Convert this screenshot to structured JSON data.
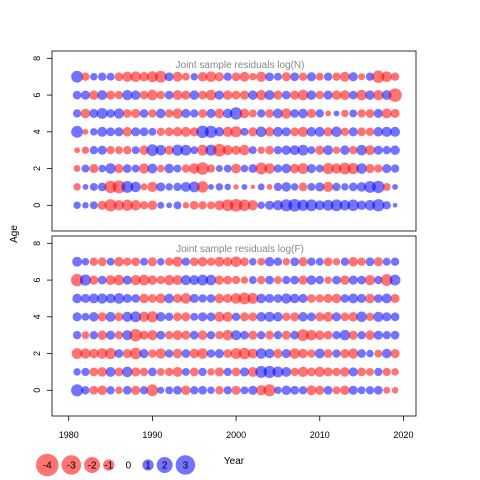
{
  "chart_data": {
    "type": "scatter",
    "subtype": "bubble",
    "ylabel": "Age",
    "legend_title": "Year",
    "legend_placement": "bottom-left",
    "colors": {
      "negative": "#FF0000",
      "positive": "#0000FF",
      "opacity": 0.55
    },
    "x_ticks": [
      1980,
      1990,
      2000,
      2010,
      2020
    ],
    "y_ticks": [
      0,
      2,
      4,
      6,
      8
    ],
    "xlim": [
      1978,
      2021.5
    ],
    "ylim": [
      -1.4,
      8.4
    ],
    "ages": [
      0,
      1,
      2,
      3,
      4,
      5,
      6,
      7
    ],
    "years": [
      1981,
      1982,
      1983,
      1984,
      1985,
      1986,
      1987,
      1988,
      1989,
      1990,
      1991,
      1992,
      1993,
      1994,
      1995,
      1996,
      1997,
      1998,
      1999,
      2000,
      2001,
      2002,
      2003,
      2004,
      2005,
      2006,
      2007,
      2008,
      2009,
      2010,
      2011,
      2012,
      2013,
      2014,
      2015,
      2016,
      2017,
      2018,
      2019
    ],
    "legend": [
      {
        "label": "-4",
        "value": -4
      },
      {
        "label": "-3",
        "value": -3
      },
      {
        "label": "-2",
        "value": -2
      },
      {
        "label": "-1",
        "value": -1
      },
      {
        "label": "0",
        "value": 0
      },
      {
        "label": "1",
        "value": 1
      },
      {
        "label": "2",
        "value": 2
      },
      {
        "label": "3",
        "value": 3
      }
    ],
    "panels": [
      {
        "title": "Joint sample residuals log(N)",
        "residuals": [
          [
            0.8,
            0.6,
            0.9,
            -1.2,
            -2.1,
            -1.5,
            -1.8,
            -1.6,
            -1.0,
            -1.3,
            0.7,
            0.5,
            0.9,
            -0.6,
            -1.1,
            -1.0,
            -0.9,
            -1.4,
            -2.0,
            -2.3,
            -1.9,
            -1.5,
            0.8,
            1.2,
            1.5,
            2.1,
            2.3,
            1.8,
            2.0,
            1.4,
            1.7,
            2.0,
            1.6,
            1.9,
            1.3,
            1.6,
            2.2,
            1.0,
            0.3
          ],
          [
            -0.8,
            0.5,
            0.9,
            1.1,
            -2.2,
            -2.4,
            2.0,
            1.6,
            -0.7,
            -1.5,
            1.2,
            0.8,
            1.0,
            1.4,
            1.7,
            -1.9,
            0.5,
            0.8,
            0.6,
            -0.4,
            0.5,
            -0.3,
            0.7,
            -0.5,
            1.0,
            1.3,
            0.8,
            -1.1,
            0.9,
            1.2,
            -1.5,
            1.0,
            0.8,
            1.1,
            1.3,
            2.0,
            2.2,
            -0.9,
            0.5
          ],
          [
            -0.7,
            0.9,
            -1.2,
            0.8,
            1.6,
            -1.2,
            1.1,
            0.9,
            -1.5,
            1.4,
            -0.8,
            1.3,
            0.9,
            -1.0,
            -1.6,
            -2.3,
            -1.0,
            0.7,
            0.9,
            -1.4,
            0.8,
            1.1,
            -2.0,
            -1.6,
            1.0,
            1.3,
            -1.3,
            -1.7,
            1.2,
            0.9,
            -1.8,
            -1.5,
            -2.0,
            -1.8,
            1.6,
            -1.2,
            -1.0,
            1.2,
            1.0
          ],
          [
            -0.5,
            -0.8,
            1.0,
            1.2,
            -1.0,
            -0.9,
            -1.0,
            0.9,
            -1.3,
            2.0,
            1.6,
            -1.2,
            1.8,
            1.7,
            0.9,
            -1.7,
            1.8,
            -2.3,
            -1.5,
            -1.2,
            -1.6,
            0.9,
            -0.8,
            -1.1,
            1.0,
            1.3,
            1.4,
            1.7,
            0.9,
            -1.2,
            1.4,
            -0.8,
            1.3,
            -1.0,
            1.6,
            -1.4,
            1.2,
            1.0,
            1.3
          ],
          [
            2.0,
            -0.5,
            0.8,
            1.4,
            1.1,
            1.2,
            -1.3,
            1.2,
            1.1,
            0.9,
            -1.0,
            -1.1,
            -1.3,
            -1.4,
            -1.2,
            2.2,
            2.1,
            1.3,
            -1.5,
            -1.8,
            0.9,
            -1.2,
            1.6,
            -1.3,
            1.4,
            1.2,
            -1.1,
            -1.5,
            1.3,
            1.4,
            -1.2,
            1.6,
            -1.0,
            1.2,
            -1.1,
            -1.0,
            1.3,
            1.5,
            1.4
          ],
          [
            1.0,
            -1.3,
            1.2,
            1.7,
            1.1,
            1.5,
            -1.1,
            -1.2,
            1.1,
            -1.0,
            1.3,
            -1.0,
            -1.5,
            1.2,
            1.0,
            -1.1,
            1.2,
            -1.3,
            1.3,
            2.2,
            -1.3,
            -0.9,
            1.0,
            -1.1,
            1.4,
            -1.5,
            1.1,
            1.3,
            -1.2,
            1.0,
            -0.5,
            0.5,
            -0.8,
            0.9,
            -1.0,
            -1.1,
            1.2,
            -1.4,
            -1.2
          ],
          [
            1.1,
            1.2,
            -1.3,
            1.4,
            -1.2,
            -1.0,
            1.5,
            1.3,
            -1.1,
            -1.6,
            -1.0,
            1.1,
            -1.4,
            -1.2,
            1.3,
            -1.1,
            -1.6,
            1.2,
            -1.3,
            -1.1,
            -1.2,
            1.3,
            -1.5,
            1.4,
            -1.2,
            1.1,
            -1.2,
            -1.6,
            1.3,
            -1.0,
            1.2,
            -1.3,
            -1.4,
            1.1,
            -1.6,
            1.3,
            -1.5,
            1.4,
            -2.6
          ],
          [
            2.0,
            -1.0,
            0.8,
            1.0,
            0.9,
            -1.1,
            -1.5,
            -1.6,
            -1.3,
            -1.7,
            -2.0,
            1.1,
            -1.4,
            -0.9,
            0.8,
            -1.3,
            -1.6,
            -1.2,
            1.0,
            -1.1,
            -1.4,
            -0.8,
            -1.5,
            1.1,
            0.9,
            -1.2,
            1.1,
            -1.0,
            1.2,
            -0.9,
            1.0,
            -1.0,
            -1.4,
            1.2,
            -0.7,
            1.0,
            -2.2,
            -1.6,
            -1.0
          ]
        ]
      },
      {
        "title": "Joint sample residuals log(F)",
        "residuals": [
          [
            2.1,
            1.0,
            -1.1,
            -1.3,
            1.0,
            -0.8,
            1.1,
            -1.2,
            1.0,
            -2.0,
            0.7,
            0.9,
            1.1,
            -1.3,
            1.0,
            1.1,
            0.8,
            -1.0,
            1.0,
            -1.2,
            0.9,
            1.2,
            -1.5,
            -2.1,
            0.8,
            1.3,
            1.1,
            1.0,
            -1.4,
            -1.2,
            1.1,
            -0.9,
            -1.3,
            1.2,
            0.9,
            1.0,
            1.1,
            -0.7,
            -0.6
          ],
          [
            0.8,
            1.0,
            -1.1,
            -1.3,
            1.4,
            -1.1,
            1.6,
            -1.2,
            -1.0,
            1.1,
            -0.9,
            -1.0,
            -1.4,
            0.9,
            -1.1,
            1.0,
            -0.8,
            -1.2,
            1.0,
            -1.1,
            1.2,
            -1.4,
            2.0,
            2.1,
            1.7,
            1.4,
            -1.0,
            -1.5,
            -1.1,
            -1.5,
            -1.2,
            -1.0,
            -1.3,
            1.2,
            -1.1,
            -0.9,
            1.0,
            -1.0,
            -0.8
          ],
          [
            -1.7,
            -1.5,
            -1.3,
            -1.6,
            -1.8,
            1.1,
            -1.2,
            -1.9,
            1.2,
            -1.0,
            -1.5,
            1.0,
            -1.3,
            1.1,
            -1.3,
            -1.6,
            1.0,
            1.2,
            -1.1,
            -1.7,
            -1.9,
            -1.4,
            1.6,
            1.3,
            -1.2,
            1.2,
            -1.6,
            -1.3,
            -1.0,
            1.4,
            -1.1,
            1.0,
            -1.2,
            -1.5,
            1.1,
            0.8,
            -0.9,
            1.3,
            -1.2
          ],
          [
            1.0,
            -0.9,
            1.0,
            -1.3,
            1.2,
            -1.0,
            1.5,
            -2.2,
            -1.2,
            -1.5,
            1.1,
            -1.0,
            -1.4,
            -1.2,
            1.1,
            -1.3,
            1.0,
            -1.0,
            -1.6,
            1.5,
            1.1,
            -1.2,
            1.0,
            -1.1,
            1.0,
            -1.2,
            1.1,
            -2.0,
            -1.6,
            -1.3,
            -1.1,
            1.0,
            1.6,
            -1.2,
            1.0,
            -1.3,
            1.2,
            1.0,
            1.1
          ],
          [
            1.2,
            0.9,
            1.3,
            -1.2,
            1.4,
            -1.1,
            1.5,
            1.7,
            -1.5,
            -1.8,
            1.3,
            1.0,
            -1.1,
            -1.2,
            0.9,
            1.2,
            1.1,
            -1.5,
            -1.4,
            1.0,
            -1.2,
            -1.1,
            1.3,
            1.5,
            1.3,
            -1.0,
            -1.2,
            1.3,
            1.1,
            -1.2,
            -1.4,
            1.2,
            -1.1,
            -1.3,
            1.6,
            -1.0,
            1.5,
            1.2,
            1.1
          ],
          [
            1.3,
            1.2,
            1.4,
            1.5,
            1.3,
            1.6,
            1.2,
            1.1,
            -1.3,
            -1.1,
            -1.4,
            1.3,
            -1.2,
            -1.6,
            1.2,
            1.0,
            1.1,
            -1.3,
            -1.2,
            -1.6,
            -2.0,
            -1.7,
            1.3,
            1.2,
            1.1,
            1.5,
            1.3,
            1.2,
            -1.1,
            -1.0,
            -1.2,
            -1.3,
            1.1,
            1.4,
            1.2,
            -1.3,
            1.1,
            1.4,
            -1.2
          ],
          [
            -2.2,
            1.8,
            -1.2,
            1.1,
            -1.4,
            -1.6,
            1.2,
            -1.5,
            -1.7,
            -1.3,
            -1.0,
            -1.5,
            -1.4,
            1.5,
            1.4,
            1.7,
            1.6,
            -1.2,
            -1.1,
            -1.0,
            -0.8,
            0.9,
            -1.0,
            1.1,
            -0.9,
            1.0,
            1.1,
            -1.2,
            1.3,
            1.0,
            -0.8,
            1.1,
            -1.3,
            1.2,
            1.1,
            -1.5,
            1.0,
            -2.0,
            1.7
          ],
          [
            1.4,
            0.8,
            -1.0,
            -1.1,
            0.9,
            -1.3,
            -1.0,
            -1.1,
            0.9,
            -1.2,
            0.8,
            -1.0,
            -1.5,
            1.0,
            -1.1,
            -1.3,
            -1.0,
            -1.4,
            -1.2,
            -1.6,
            -1.1,
            0.8,
            -0.9,
            1.3,
            1.0,
            -0.8,
            1.1,
            -1.2,
            1.0,
            0.9,
            -1.1,
            -0.8,
            1.0,
            -1.3,
            -1.0,
            1.1,
            -1.2,
            0.9,
            1.0
          ]
        ]
      }
    ]
  }
}
